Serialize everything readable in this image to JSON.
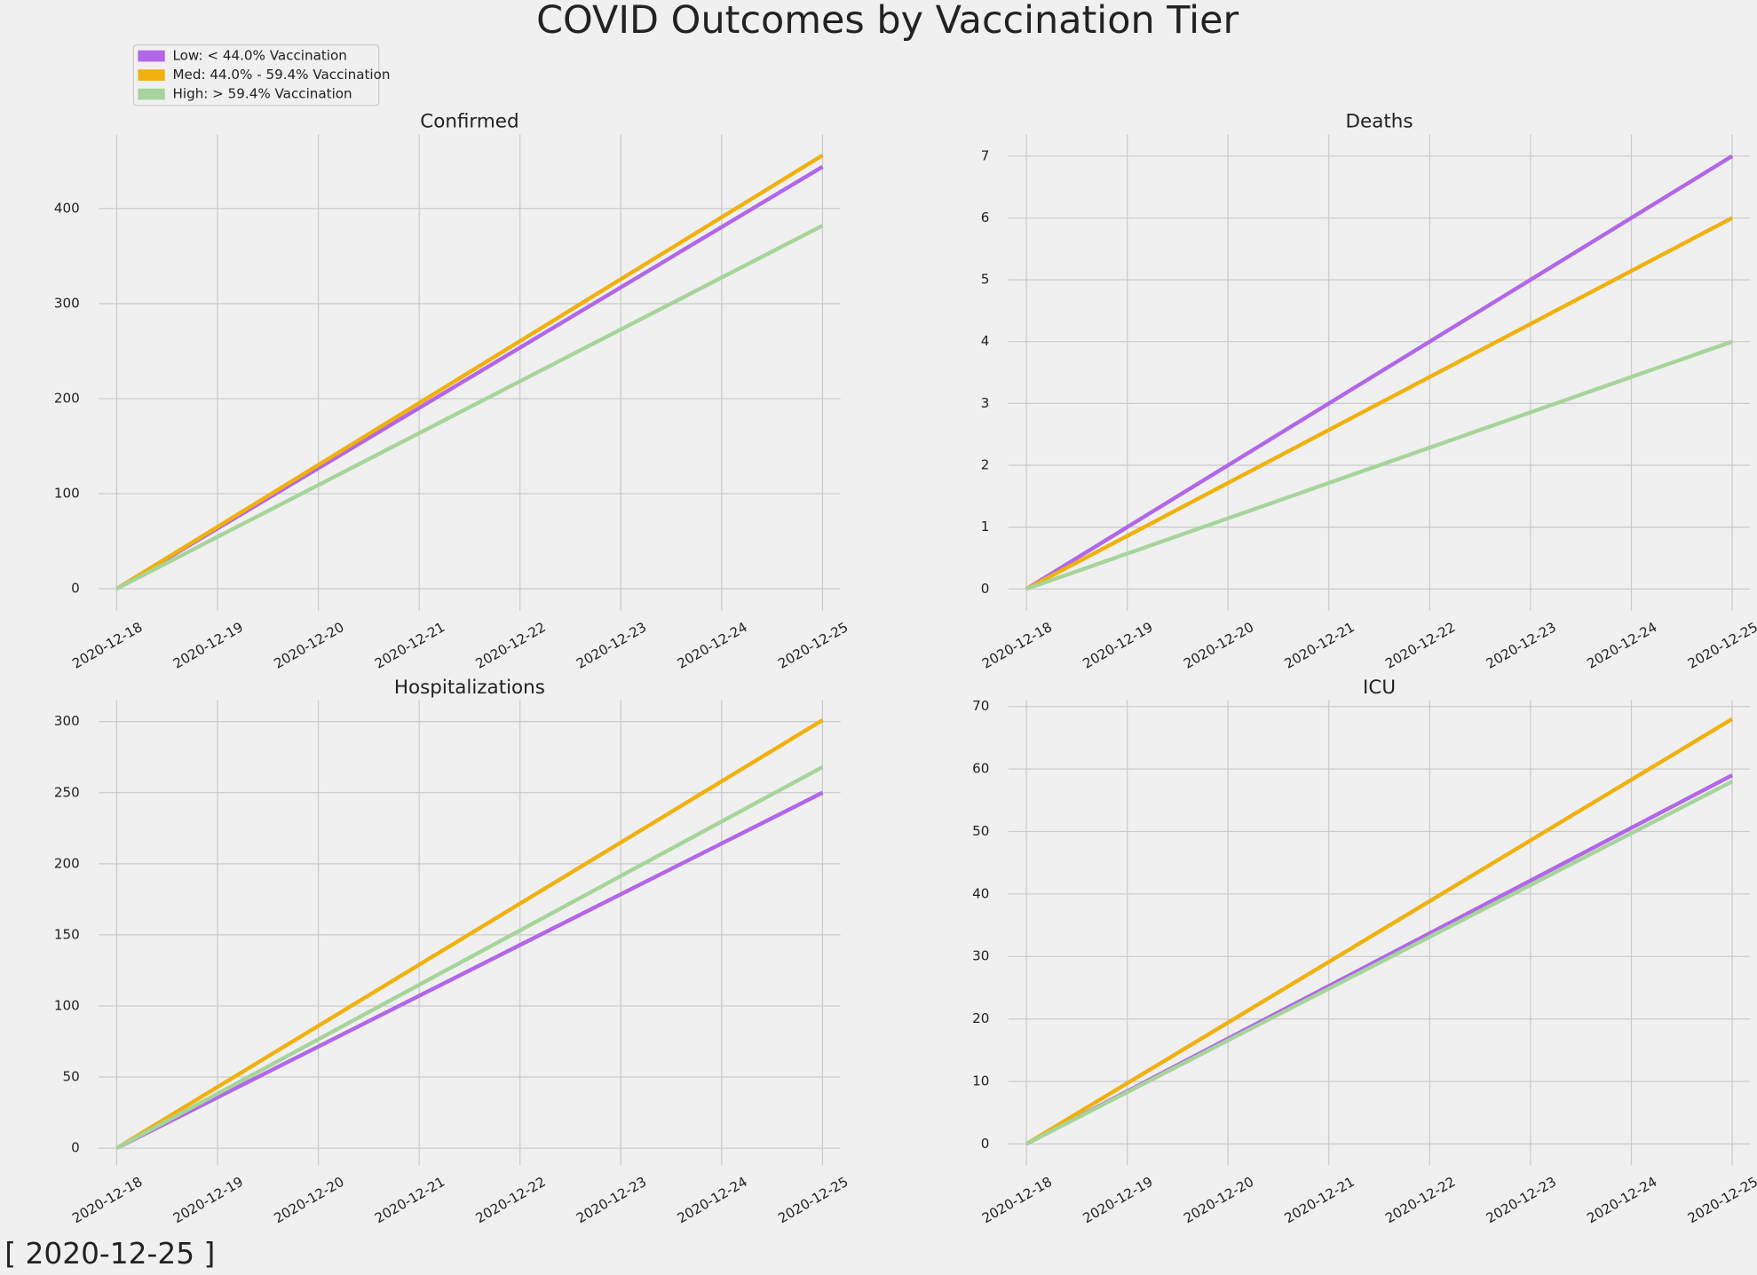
{
  "title": "COVID Outcomes by Vaccination Tier",
  "date_label": "[ 2020-12-25 ]",
  "legend": [
    {
      "name": "Low: < 44.0% Vaccination",
      "color": "#b266e8"
    },
    {
      "name": "Med: 44.0% - 59.4% Vaccination",
      "color": "#f0b10f"
    },
    {
      "name": "High: > 59.4%  Vaccination",
      "color": "#a6d49a"
    }
  ],
  "chart_data": [
    {
      "type": "line",
      "title": "Confirmed",
      "x": [
        "2020-12-18",
        "2020-12-25"
      ],
      "series": [
        {
          "values": [
            0,
            444
          ]
        },
        {
          "values": [
            0,
            456
          ]
        },
        {
          "values": [
            0,
            382
          ]
        }
      ],
      "xlim": [
        "2020-12-18",
        "2020-12-25"
      ],
      "xticks": [
        "2020-12-18",
        "2020-12-19",
        "2020-12-20",
        "2020-12-21",
        "2020-12-22",
        "2020-12-23",
        "2020-12-24",
        "2020-12-25"
      ],
      "ylim": [
        -23,
        478
      ],
      "yticks": [
        0,
        100,
        200,
        300,
        400
      ],
      "grid": true
    },
    {
      "type": "line",
      "title": "Deaths",
      "x": [
        "2020-12-18",
        "2020-12-25"
      ],
      "series": [
        {
          "values": [
            0,
            7
          ]
        },
        {
          "values": [
            0,
            6
          ]
        },
        {
          "values": [
            0,
            4
          ]
        }
      ],
      "xlim": [
        "2020-12-18",
        "2020-12-25"
      ],
      "xticks": [
        "2020-12-18",
        "2020-12-19",
        "2020-12-20",
        "2020-12-21",
        "2020-12-22",
        "2020-12-23",
        "2020-12-24",
        "2020-12-25"
      ],
      "ylim": [
        -0.35,
        7.35
      ],
      "yticks": [
        0,
        1,
        2,
        3,
        4,
        5,
        6,
        7
      ],
      "grid": true
    },
    {
      "type": "line",
      "title": "Hospitalizations",
      "x": [
        "2020-12-18",
        "2020-12-25"
      ],
      "series": [
        {
          "values": [
            0,
            250
          ]
        },
        {
          "values": [
            0,
            301
          ]
        },
        {
          "values": [
            0,
            268
          ]
        }
      ],
      "xlim": [
        "2020-12-18",
        "2020-12-25"
      ],
      "xticks": [
        "2020-12-18",
        "2020-12-19",
        "2020-12-20",
        "2020-12-21",
        "2020-12-22",
        "2020-12-23",
        "2020-12-24",
        "2020-12-25"
      ],
      "ylim": [
        -12,
        315
      ],
      "yticks": [
        0,
        50,
        100,
        150,
        200,
        250,
        300
      ],
      "grid": true
    },
    {
      "type": "line",
      "title": "ICU",
      "x": [
        "2020-12-18",
        "2020-12-25"
      ],
      "series": [
        {
          "values": [
            0,
            59
          ]
        },
        {
          "values": [
            0,
            68
          ]
        },
        {
          "values": [
            0,
            58
          ]
        }
      ],
      "xlim": [
        "2020-12-18",
        "2020-12-25"
      ],
      "xticks": [
        "2020-12-18",
        "2020-12-19",
        "2020-12-20",
        "2020-12-21",
        "2020-12-22",
        "2020-12-23",
        "2020-12-24",
        "2020-12-25"
      ],
      "ylim": [
        -3.4,
        71
      ],
      "yticks": [
        0,
        10,
        20,
        30,
        40,
        50,
        60,
        70
      ],
      "grid": true
    }
  ]
}
